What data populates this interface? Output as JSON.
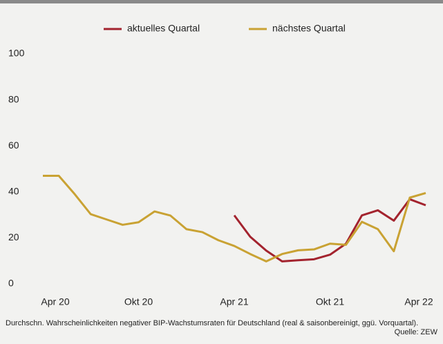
{
  "chart_data": {
    "type": "line",
    "caption": "Durchschn. Wahrscheinlichkeiten negativer BIP-Wachstumsraten für Deutschland (real & saisonbereinigt, ggü. Vorquartal).",
    "source": "Quelle: ZEW",
    "categories": [
      "Apr 20",
      null,
      null,
      null,
      null,
      null,
      "Okt 20",
      null,
      null,
      null,
      null,
      null,
      "Apr 21",
      null,
      null,
      null,
      null,
      null,
      "Okt 21",
      null,
      null,
      null,
      null,
      null,
      "Apr 22"
    ],
    "series": [
      {
        "name": "aktuelles Quartal",
        "color": "#a3232e",
        "values": [
          null,
          null,
          null,
          null,
          null,
          null,
          null,
          null,
          null,
          null,
          null,
          null,
          29.8,
          20.5,
          14.5,
          9.8,
          10.3,
          10.7,
          12.7,
          17.5,
          29.8,
          32,
          27.5,
          36.8,
          34.2
        ]
      },
      {
        "name": "nächstes Quartal",
        "color": "#c9a233",
        "values": [
          47,
          47,
          39,
          30.3,
          28,
          25.7,
          26.8,
          31.5,
          29.7,
          23.8,
          22.5,
          19,
          16.5,
          13,
          9.8,
          13,
          14.6,
          15,
          17.5,
          17,
          27,
          23.8,
          14.2,
          37.5,
          39.5
        ]
      }
    ],
    "ylim": [
      0,
      100
    ],
    "yticks": [
      0,
      20,
      40,
      60,
      80,
      100
    ],
    "grid": false,
    "legend": "top"
  }
}
